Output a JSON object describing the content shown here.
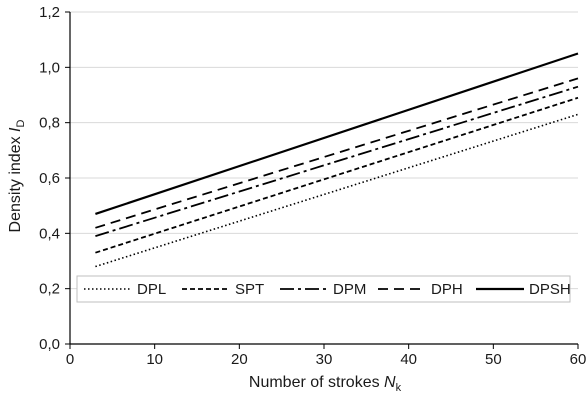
{
  "chart_data": {
    "type": "line",
    "xlabel": "Number of strokes ",
    "xlabel_sub": "N",
    "xlabel_subscript": "k",
    "ylabel": "Density index ",
    "ylabel_sub": "I",
    "ylabel_subscript": "D",
    "xlim": [
      0,
      60
    ],
    "ylim": [
      0,
      1.2
    ],
    "x_ticks": [
      "0",
      "10",
      "20",
      "30",
      "40",
      "50",
      "60"
    ],
    "y_ticks": [
      "0,0",
      "0,2",
      "0,4",
      "0,6",
      "0,8",
      "1,0",
      "1,2"
    ],
    "grid": "horizontal",
    "legend": "lower-center",
    "series": [
      {
        "name": "DPL",
        "style": "dotted",
        "x": [
          3,
          60
        ],
        "y": [
          0.28,
          0.83
        ]
      },
      {
        "name": "SPT",
        "style": "dashed",
        "x": [
          3,
          60
        ],
        "y": [
          0.33,
          0.89
        ]
      },
      {
        "name": "DPM",
        "style": "dash-dot",
        "x": [
          3,
          60
        ],
        "y": [
          0.39,
          0.93
        ]
      },
      {
        "name": "DPH",
        "style": "long-dash",
        "x": [
          3,
          60
        ],
        "y": [
          0.42,
          0.96
        ]
      },
      {
        "name": "DPSH",
        "style": "solid",
        "x": [
          3,
          60
        ],
        "y": [
          0.47,
          1.05
        ]
      }
    ],
    "colors": {
      "line": "#000000",
      "grid": "#d9d9d9",
      "axis": "#000000"
    }
  }
}
